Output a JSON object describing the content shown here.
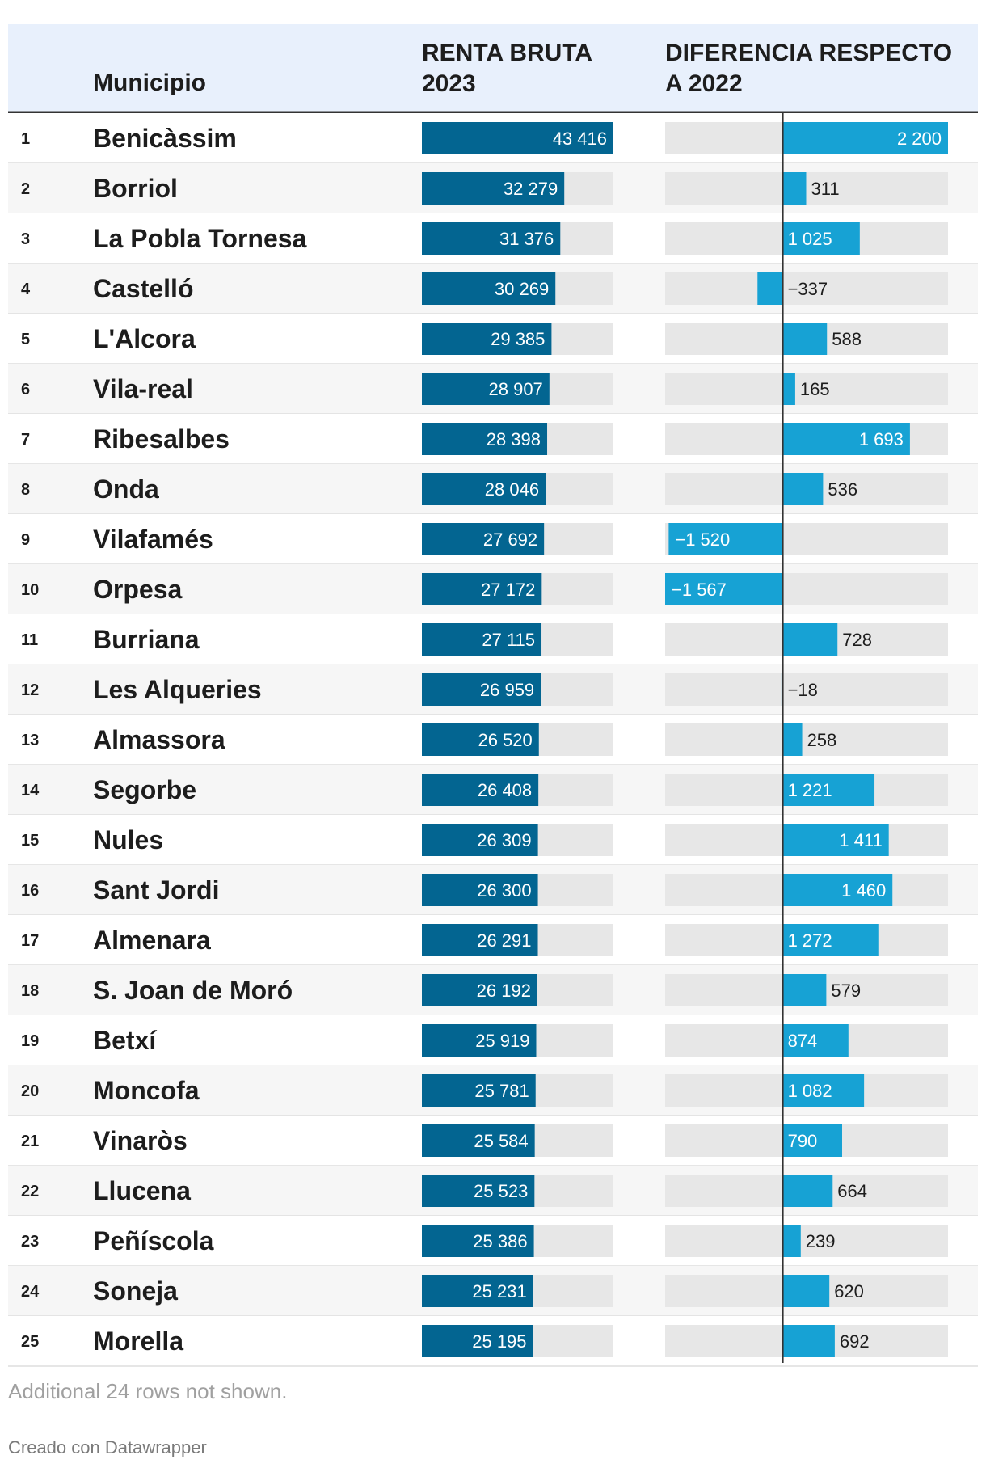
{
  "chart_data": {
    "type": "table",
    "columns": {
      "municipio": "Municipio",
      "renta_line1": "RENTA BRUTA",
      "renta_line2": "2023",
      "diff_line1": "DIFERENCIA RESPECTO",
      "diff_line2": "A 2022"
    },
    "renta_range": [
      0,
      43416
    ],
    "diff_range": [
      -1567,
      2200
    ],
    "rows": [
      {
        "rank": "1",
        "name": "Benicàssim",
        "renta": 43416,
        "renta_label": "43 416",
        "diff": 2200,
        "diff_label": "2 200"
      },
      {
        "rank": "2",
        "name": "Borriol",
        "renta": 32279,
        "renta_label": "32 279",
        "diff": 311,
        "diff_label": "311"
      },
      {
        "rank": "3",
        "name": "La Pobla Tornesa",
        "renta": 31376,
        "renta_label": "31 376",
        "diff": 1025,
        "diff_label": "1 025"
      },
      {
        "rank": "4",
        "name": "Castelló",
        "renta": 30269,
        "renta_label": "30 269",
        "diff": -337,
        "diff_label": "−337"
      },
      {
        "rank": "5",
        "name": "L'Alcora",
        "renta": 29385,
        "renta_label": "29 385",
        "diff": 588,
        "diff_label": "588"
      },
      {
        "rank": "6",
        "name": "Vila-real",
        "renta": 28907,
        "renta_label": "28 907",
        "diff": 165,
        "diff_label": "165"
      },
      {
        "rank": "7",
        "name": "Ribesalbes",
        "renta": 28398,
        "renta_label": "28 398",
        "diff": 1693,
        "diff_label": "1 693"
      },
      {
        "rank": "8",
        "name": "Onda",
        "renta": 28046,
        "renta_label": "28 046",
        "diff": 536,
        "diff_label": "536"
      },
      {
        "rank": "9",
        "name": "Vilafamés",
        "renta": 27692,
        "renta_label": "27 692",
        "diff": -1520,
        "diff_label": "−1 520"
      },
      {
        "rank": "10",
        "name": "Orpesa",
        "renta": 27172,
        "renta_label": "27 172",
        "diff": -1567,
        "diff_label": "−1 567"
      },
      {
        "rank": "11",
        "name": "Burriana",
        "renta": 27115,
        "renta_label": "27 115",
        "diff": 728,
        "diff_label": "728"
      },
      {
        "rank": "12",
        "name": "Les Alqueries",
        "renta": 26959,
        "renta_label": "26 959",
        "diff": -18,
        "diff_label": "−18"
      },
      {
        "rank": "13",
        "name": "Almassora",
        "renta": 26520,
        "renta_label": "26 520",
        "diff": 258,
        "diff_label": "258"
      },
      {
        "rank": "14",
        "name": "Segorbe",
        "renta": 26408,
        "renta_label": "26 408",
        "diff": 1221,
        "diff_label": "1 221"
      },
      {
        "rank": "15",
        "name": "Nules",
        "renta": 26309,
        "renta_label": "26 309",
        "diff": 1411,
        "diff_label": "1 411"
      },
      {
        "rank": "16",
        "name": "Sant Jordi",
        "renta": 26300,
        "renta_label": "26 300",
        "diff": 1460,
        "diff_label": "1 460"
      },
      {
        "rank": "17",
        "name": "Almenara",
        "renta": 26291,
        "renta_label": "26 291",
        "diff": 1272,
        "diff_label": "1 272"
      },
      {
        "rank": "18",
        "name": "S. Joan de Moró",
        "renta": 26192,
        "renta_label": "26 192",
        "diff": 579,
        "diff_label": "579"
      },
      {
        "rank": "19",
        "name": "Betxí",
        "renta": 25919,
        "renta_label": "25 919",
        "diff": 874,
        "diff_label": "874"
      },
      {
        "rank": "20",
        "name": "Moncofa",
        "renta": 25781,
        "renta_label": "25 781",
        "diff": 1082,
        "diff_label": "1 082"
      },
      {
        "rank": "21",
        "name": "Vinaròs",
        "renta": 25584,
        "renta_label": "25 584",
        "diff": 790,
        "diff_label": "790"
      },
      {
        "rank": "22",
        "name": "Llucena",
        "renta": 25523,
        "renta_label": "25 523",
        "diff": 664,
        "diff_label": "664"
      },
      {
        "rank": "23",
        "name": "Peñíscola",
        "renta": 25386,
        "renta_label": "25 386",
        "diff": 239,
        "diff_label": "239"
      },
      {
        "rank": "24",
        "name": "Soneja",
        "renta": 25231,
        "renta_label": "25 231",
        "diff": 620,
        "diff_label": "620"
      },
      {
        "rank": "25",
        "name": "Morella",
        "renta": 25195,
        "renta_label": "25 195",
        "diff": 692,
        "diff_label": "692"
      }
    ],
    "note": "Additional 24 rows not shown."
  },
  "footer": {
    "credit": "Creado con Datawrapper"
  },
  "colors": {
    "header_bg": "#e8f0fc",
    "row_alt_bg": "#f6f6f6",
    "row_border": "#dddddd",
    "track": "#e7e7e7",
    "renta_bar": "#036591",
    "diff_bar": "#17a2d4",
    "axis": "#333333"
  }
}
